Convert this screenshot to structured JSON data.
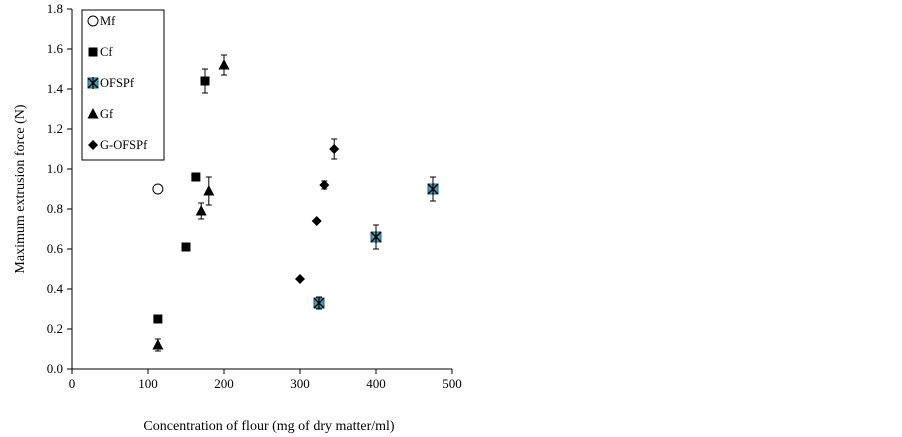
{
  "chart_data": {
    "type": "scatter",
    "xlabel": "Concentration of flour  (mg of dry matter/ml)",
    "ylabel": "Maximum extrusion force (N)",
    "xlim": [
      0,
      500
    ],
    "ylim": [
      0,
      1.8
    ],
    "x_ticks": [
      0,
      100,
      200,
      300,
      400,
      500
    ],
    "y_ticks": [
      "0.0",
      "0.2",
      "0.4",
      "0.6",
      "0.8",
      "1.0",
      "1.2",
      "1.4",
      "1.6",
      "1.8"
    ],
    "grid": false,
    "legend_position": "top-left",
    "series": [
      {
        "name": "Mf",
        "marker": "circle-open",
        "color": "#000000",
        "points": [
          {
            "x": 113,
            "y": 0.9,
            "err": 0
          }
        ]
      },
      {
        "name": "Cf",
        "marker": "square",
        "color": "#000000",
        "points": [
          {
            "x": 113,
            "y": 0.25,
            "err": 0
          },
          {
            "x": 150,
            "y": 0.61,
            "err": 0
          },
          {
            "x": 163,
            "y": 0.96,
            "err": 0
          },
          {
            "x": 175,
            "y": 1.44,
            "err": 0.06
          }
        ]
      },
      {
        "name": "OFSPf",
        "marker": "asterisk-square",
        "color": "#4a9fb8",
        "points": [
          {
            "x": 325,
            "y": 0.33,
            "err": 0.03
          },
          {
            "x": 400,
            "y": 0.66,
            "err": 0.06
          },
          {
            "x": 475,
            "y": 0.9,
            "err": 0.06
          }
        ]
      },
      {
        "name": "Gf",
        "marker": "triangle",
        "color": "#000000",
        "points": [
          {
            "x": 113,
            "y": 0.12,
            "err": 0.03
          },
          {
            "x": 170,
            "y": 0.79,
            "err": 0.04
          },
          {
            "x": 180,
            "y": 0.89,
            "err": 0.07
          },
          {
            "x": 200,
            "y": 1.52,
            "err": 0.05
          }
        ]
      },
      {
        "name": "G-OFSPf",
        "marker": "diamond",
        "color": "#000000",
        "points": [
          {
            "x": 300,
            "y": 0.45,
            "err": 0
          },
          {
            "x": 322,
            "y": 0.74,
            "err": 0
          },
          {
            "x": 332,
            "y": 0.92,
            "err": 0.02
          },
          {
            "x": 345,
            "y": 1.1,
            "err": 0.05
          }
        ]
      }
    ]
  }
}
